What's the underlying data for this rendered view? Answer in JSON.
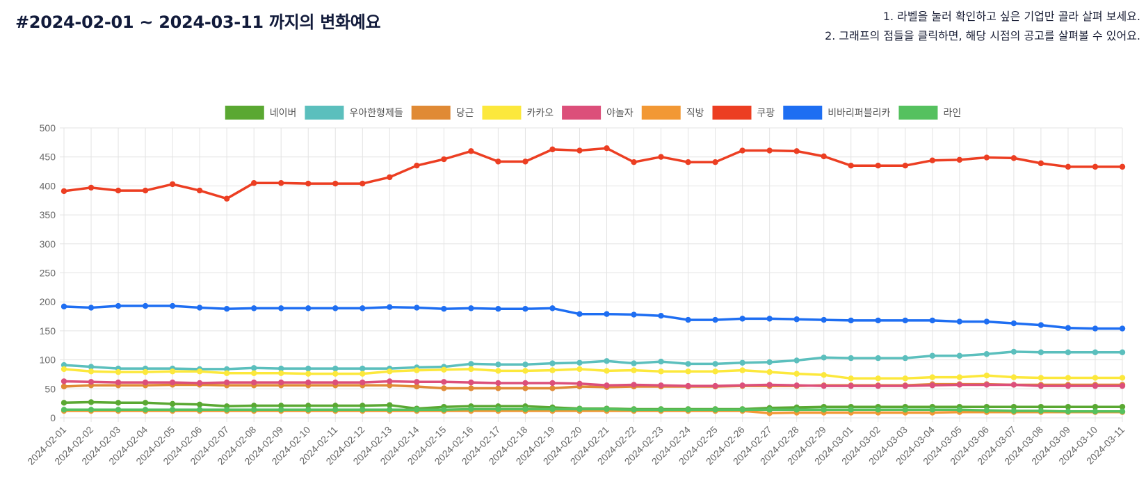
{
  "header": {
    "title": "#2024-02-01 ~ 2024-03-11 까지의 변화예요",
    "instructions": [
      "1. 라벨을 눌러 확인하고 싶은 기업만 골라 살펴 보세요.",
      "2. 그래프의 점들을 클릭하면, 해당 시점의 공고를 살펴볼 수 있어요."
    ]
  },
  "chart_data": {
    "type": "line",
    "title": "",
    "xlabel": "",
    "ylabel": "",
    "ylim": [
      0,
      500
    ],
    "yticks": [
      0,
      50,
      100,
      150,
      200,
      250,
      300,
      350,
      400,
      450,
      500
    ],
    "grid": true,
    "legend_position": "top",
    "x": [
      "2024-02-01",
      "2024-02-02",
      "2024-02-03",
      "2024-02-04",
      "2024-02-05",
      "2024-02-06",
      "2024-02-07",
      "2024-02-08",
      "2024-02-09",
      "2024-02-10",
      "2024-02-11",
      "2024-02-12",
      "2024-02-13",
      "2024-02-14",
      "2024-02-15",
      "2024-02-16",
      "2024-02-17",
      "2024-02-18",
      "2024-02-19",
      "2024-02-20",
      "2024-02-21",
      "2024-02-22",
      "2024-02-23",
      "2024-02-24",
      "2024-02-25",
      "2024-02-26",
      "2024-02-27",
      "2024-02-28",
      "2024-02-29",
      "2024-03-01",
      "2024-03-02",
      "2024-03-03",
      "2024-03-04",
      "2024-03-05",
      "2024-03-06",
      "2024-03-07",
      "2024-03-08",
      "2024-03-09",
      "2024-03-10",
      "2024-03-11"
    ],
    "series": [
      {
        "name": "네이버",
        "color": "#5aa832",
        "values": [
          26,
          27,
          26,
          26,
          24,
          23,
          20,
          21,
          21,
          21,
          21,
          21,
          22,
          16,
          19,
          20,
          20,
          20,
          18,
          16,
          16,
          15,
          15,
          15,
          15,
          15,
          17,
          18,
          19,
          19,
          19,
          19,
          19,
          19,
          19,
          19,
          19,
          19,
          19,
          19
        ]
      },
      {
        "name": "우아한형제들",
        "color": "#5bbfbd",
        "values": [
          91,
          88,
          85,
          85,
          85,
          84,
          84,
          86,
          85,
          85,
          85,
          85,
          85,
          87,
          88,
          93,
          92,
          92,
          94,
          95,
          98,
          94,
          97,
          93,
          93,
          95,
          96,
          99,
          104,
          103,
          103,
          103,
          107,
          107,
          110,
          114,
          113,
          113,
          113,
          113
        ]
      },
      {
        "name": "당근",
        "color": "#e08a35",
        "values": [
          54,
          56,
          56,
          56,
          57,
          57,
          56,
          56,
          56,
          56,
          56,
          56,
          56,
          54,
          51,
          51,
          51,
          51,
          51,
          54,
          53,
          54,
          54,
          54,
          54,
          55,
          55,
          55,
          56,
          56,
          56,
          56,
          58,
          58,
          58,
          57,
          57,
          57,
          57,
          57
        ]
      },
      {
        "name": "카카오",
        "color": "#fce83c",
        "values": [
          84,
          80,
          79,
          79,
          80,
          80,
          77,
          77,
          77,
          76,
          76,
          76,
          80,
          82,
          83,
          84,
          81,
          81,
          82,
          84,
          81,
          82,
          80,
          80,
          80,
          82,
          79,
          76,
          74,
          68,
          68,
          68,
          70,
          70,
          73,
          70,
          69,
          69,
          69,
          69
        ]
      },
      {
        "name": "야놀자",
        "color": "#dc4f7a",
        "values": [
          63,
          62,
          61,
          61,
          61,
          60,
          61,
          61,
          61,
          61,
          61,
          61,
          63,
          62,
          62,
          61,
          60,
          60,
          60,
          59,
          56,
          57,
          56,
          55,
          55,
          56,
          57,
          56,
          55,
          55,
          55,
          55,
          56,
          57,
          57,
          57,
          55,
          55,
          55,
          55
        ]
      },
      {
        "name": "직방",
        "color": "#f29834",
        "values": [
          12,
          12,
          12,
          12,
          12,
          12,
          12,
          12,
          12,
          12,
          12,
          12,
          12,
          12,
          12,
          12,
          12,
          12,
          12,
          12,
          12,
          12,
          12,
          12,
          12,
          12,
          8,
          9,
          9,
          9,
          9,
          9,
          9,
          10,
          10,
          10,
          10,
          10,
          10,
          10
        ]
      },
      {
        "name": "쿠팡",
        "color": "#ec3e22",
        "values": [
          391,
          397,
          392,
          392,
          403,
          392,
          378,
          405,
          405,
          404,
          404,
          404,
          415,
          435,
          446,
          460,
          442,
          442,
          463,
          461,
          465,
          441,
          450,
          441,
          441,
          461,
          461,
          460,
          451,
          435,
          435,
          435,
          444,
          445,
          449,
          448,
          439,
          433,
          433,
          433
        ]
      },
      {
        "name": "비바리퍼블리카",
        "color": "#1e6ef2",
        "values": [
          192,
          190,
          193,
          193,
          193,
          190,
          188,
          189,
          189,
          189,
          189,
          189,
          191,
          190,
          188,
          189,
          188,
          188,
          189,
          179,
          179,
          178,
          176,
          169,
          169,
          171,
          171,
          170,
          169,
          168,
          168,
          168,
          168,
          166,
          166,
          163,
          160,
          155,
          154,
          154
        ]
      },
      {
        "name": "라인",
        "color": "#55c15f",
        "values": [
          14,
          14,
          14,
          14,
          14,
          14,
          14,
          14,
          14,
          14,
          14,
          14,
          14,
          14,
          14,
          15,
          15,
          15,
          15,
          15,
          15,
          14,
          14,
          14,
          14,
          14,
          14,
          14,
          14,
          14,
          14,
          14,
          14,
          14,
          13,
          12,
          12,
          11,
          11,
          11
        ]
      }
    ]
  }
}
